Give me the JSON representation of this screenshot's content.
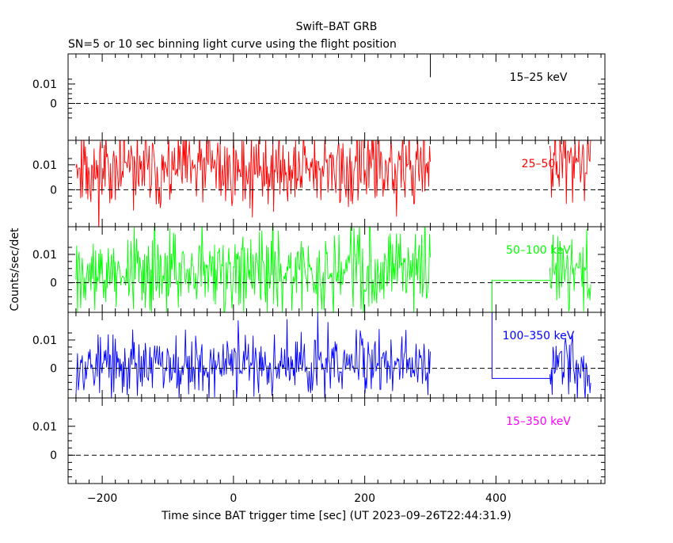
{
  "title": "Swift–BAT GRB",
  "subtitle": "SN=5 or 10 sec binning light curve using the flight position",
  "chart_data": {
    "type": "line",
    "xlabel": "Time since BAT trigger time [sec] (UT 2023–09–26T22:44:31.9)",
    "ylabel": "Counts/sec/det",
    "xlim": [
      -252,
      566
    ],
    "x_ticks": [
      "−200",
      "0",
      "200",
      "400"
    ],
    "x_tick_values": [
      -200,
      0,
      200,
      400
    ],
    "y_tick_labels": [
      "0.01",
      "0"
    ],
    "panels": [
      {
        "label": "15–25 keV",
        "color": "#000000",
        "ylim": [
          -0.019,
          0.0255
        ],
        "note": "no data except a single bin near t=300 s",
        "segments": [
          {
            "t_start": 300,
            "t_end": 301,
            "step": 1,
            "values": [
              0.0135,
              0.024
            ]
          }
        ]
      },
      {
        "label": "25–50",
        "color": "#ff0000",
        "ylim": [
          -0.0148,
          0.0198
        ],
        "seed": 11,
        "segments": [
          {
            "t_start": -240,
            "t_end": 300,
            "step": 1.2,
            "mean": 0.008,
            "noise": 0.0095
          },
          {
            "t_start": 482,
            "t_end": 545,
            "step": 1.2,
            "mean": 0.008,
            "noise": 0.0095
          }
        ]
      },
      {
        "label": "50–100 keV",
        "color": "#00ff00",
        "ylim": [
          -0.0105,
          0.0198
        ],
        "seed": 27,
        "segments": [
          {
            "t_start": -240,
            "t_end": 300,
            "step": 1.2,
            "mean": 0.004,
            "noise": 0.0085
          },
          {
            "t_start": 482,
            "t_end": 545,
            "step": 1.2,
            "mean": 0.004,
            "noise": 0.0085
          }
        ],
        "box": {
          "t1": 394,
          "t2": 482,
          "y_top": 0.0008,
          "y_bottom": -0.0105
        }
      },
      {
        "label": "100–350 keV",
        "color": "#0000ff",
        "ylim": [
          -0.0105,
          0.0198
        ],
        "seed": 53,
        "segments": [
          {
            "t_start": -240,
            "t_end": 300,
            "step": 1.2,
            "mean": 0.001,
            "noise": 0.0065
          },
          {
            "t_start": 482,
            "t_end": 545,
            "step": 1.2,
            "mean": 0.001,
            "noise": 0.0065
          }
        ],
        "box": {
          "t1": 394,
          "t2": 482,
          "y_top": 0.0198,
          "y_bottom": -0.0036
        }
      },
      {
        "label": "15–350 keV",
        "color": "#ff00ff",
        "ylim": [
          -0.0098,
          0.0198
        ],
        "segments": []
      }
    ]
  }
}
